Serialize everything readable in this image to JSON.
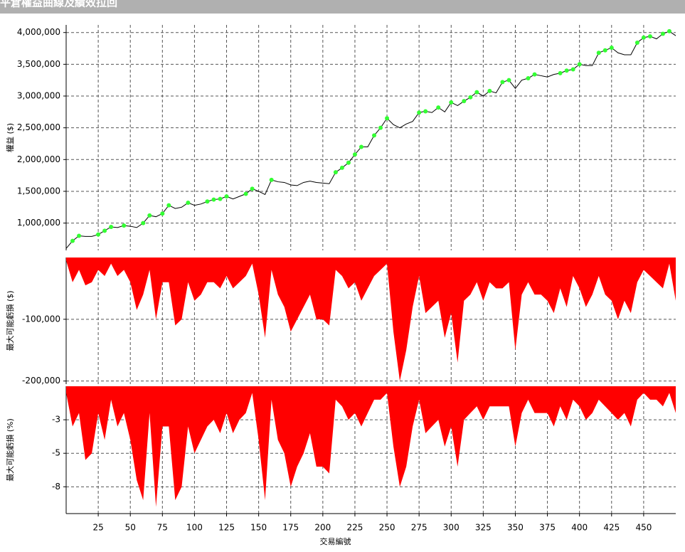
{
  "title": "平倉權益曲線及績效拉回",
  "chart_data": [
    {
      "type": "line",
      "ylabel": "權益 ($)",
      "color": "#000000",
      "marker_color": "#33ff33",
      "ylim": [
        570000,
        4120000
      ],
      "yticks": [
        {
          "value": 1000000,
          "label": "1,000,000"
        },
        {
          "value": 1500000,
          "label": "1,500,000"
        },
        {
          "value": 2000000,
          "label": "2,000,000"
        },
        {
          "value": 2500000,
          "label": "2,500,000"
        },
        {
          "value": 3000000,
          "label": "3,000,000"
        },
        {
          "value": 3500000,
          "label": "3,500,000"
        },
        {
          "value": 4000000,
          "label": "4,000,000"
        }
      ],
      "values": [
        600000,
        720000,
        800000,
        790000,
        790000,
        820000,
        880000,
        940000,
        930000,
        960000,
        950000,
        930000,
        1000000,
        1120000,
        1100000,
        1150000,
        1280000,
        1230000,
        1250000,
        1320000,
        1280000,
        1300000,
        1340000,
        1370000,
        1380000,
        1420000,
        1380000,
        1420000,
        1460000,
        1540000,
        1500000,
        1450000,
        1680000,
        1650000,
        1640000,
        1600000,
        1590000,
        1640000,
        1660000,
        1640000,
        1630000,
        1620000,
        1800000,
        1870000,
        1950000,
        2080000,
        2200000,
        2200000,
        2380000,
        2500000,
        2650000,
        2550000,
        2500000,
        2560000,
        2600000,
        2740000,
        2760000,
        2740000,
        2820000,
        2750000,
        2900000,
        2850000,
        2920000,
        2980000,
        3060000,
        3000000,
        3080000,
        3050000,
        3220000,
        3250000,
        3120000,
        3250000,
        3280000,
        3340000,
        3320000,
        3300000,
        3340000,
        3360000,
        3400000,
        3420000,
        3500000,
        3480000,
        3480000,
        3680000,
        3720000,
        3760000,
        3680000,
        3650000,
        3650000,
        3840000,
        3920000,
        3940000,
        3900000,
        3980000,
        4020000,
        3950000
      ]
    },
    {
      "type": "area",
      "ylabel": "最大可能虧損 ($)",
      "color": "#ff0000",
      "ylim": [
        -205000,
        0
      ],
      "yticks": [
        {
          "value": -100000,
          "label": "-100,000"
        },
        {
          "value": -200000,
          "label": "-200,000"
        }
      ],
      "values": [
        -5000,
        -40000,
        -20000,
        -45000,
        -40000,
        -20000,
        -30000,
        -10000,
        -30000,
        -20000,
        -40000,
        -85000,
        -60000,
        -20000,
        -100000,
        -40000,
        -40000,
        -110000,
        -100000,
        -40000,
        -70000,
        -60000,
        -40000,
        -40000,
        -50000,
        -30000,
        -50000,
        -40000,
        -30000,
        -10000,
        -60000,
        -130000,
        -20000,
        -60000,
        -80000,
        -120000,
        -100000,
        -80000,
        -60000,
        -100000,
        -100000,
        -110000,
        -20000,
        -30000,
        -50000,
        -40000,
        -70000,
        -50000,
        -30000,
        -20000,
        -10000,
        -120000,
        -200000,
        -150000,
        -80000,
        -30000,
        -90000,
        -80000,
        -70000,
        -130000,
        -90000,
        -170000,
        -70000,
        -60000,
        -40000,
        -70000,
        -40000,
        -50000,
        -50000,
        -40000,
        -150000,
        -60000,
        -40000,
        -60000,
        -60000,
        -70000,
        -90000,
        -50000,
        -80000,
        -30000,
        -50000,
        -80000,
        -60000,
        -30000,
        -60000,
        -70000,
        -100000,
        -70000,
        -90000,
        -40000,
        -20000,
        -30000,
        -40000,
        -50000,
        -10000,
        -70000
      ]
    },
    {
      "type": "area",
      "ylabel": "最大可能虧損 (%)",
      "xlabel": "交易編號",
      "color": "#ff0000",
      "ylim": [
        -9.5,
        0
      ],
      "xlim": [
        0,
        475
      ],
      "yticks": [
        {
          "value": -2.5,
          "label": "-3"
        },
        -5,
        {
          "value": -7.5,
          "label": "-8"
        }
      ],
      "xticks": [
        25,
        50,
        75,
        100,
        125,
        150,
        175,
        200,
        225,
        250,
        275,
        300,
        325,
        350,
        375,
        400,
        425,
        450
      ],
      "x": [
        0,
        5,
        10,
        15,
        20,
        25,
        30,
        35,
        40,
        45,
        50,
        55,
        60,
        65,
        70,
        75,
        80,
        85,
        90,
        95,
        100,
        105,
        110,
        115,
        120,
        125,
        130,
        135,
        140,
        145,
        150,
        155,
        160,
        165,
        170,
        175,
        180,
        185,
        190,
        195,
        200,
        205,
        210,
        215,
        220,
        225,
        230,
        235,
        240,
        245,
        250,
        255,
        260,
        265,
        270,
        275,
        280,
        285,
        290,
        295,
        300,
        305,
        310,
        315,
        320,
        325,
        330,
        335,
        340,
        345,
        350,
        355,
        360,
        365,
        370,
        375,
        380,
        385,
        390,
        395,
        400,
        405,
        410,
        415,
        420,
        425,
        430,
        435,
        440,
        445,
        450,
        455,
        460,
        465,
        470,
        475
      ],
      "values": [
        -0.5,
        -3,
        -2,
        -5.5,
        -5,
        -2,
        -4,
        -1,
        -3,
        -2,
        -4,
        -7,
        -8.5,
        -2,
        -9,
        -3,
        -3,
        -8.5,
        -7.5,
        -3,
        -5,
        -4,
        -3,
        -2.5,
        -3.5,
        -2,
        -3.5,
        -2.5,
        -2,
        -0.5,
        -4,
        -8.5,
        -1,
        -4,
        -5,
        -7.5,
        -6,
        -5,
        -3.5,
        -6,
        -6,
        -6.5,
        -1,
        -1.5,
        -2.5,
        -2,
        -3,
        -2,
        -1,
        -1,
        -0.5,
        -4.5,
        -7.5,
        -6,
        -3,
        -1,
        -3.5,
        -3,
        -2.5,
        -4.5,
        -3,
        -6,
        -2.5,
        -2,
        -1.5,
        -2.5,
        -1.5,
        -1.5,
        -1.5,
        -1.5,
        -4.5,
        -2,
        -1,
        -2,
        -2,
        -2,
        -3,
        -1.5,
        -2.5,
        -1,
        -1.5,
        -2.5,
        -2,
        -1,
        -1.5,
        -2,
        -2.5,
        -2,
        -3,
        -1,
        -0.5,
        -1,
        -1,
        -1.5,
        -0.5,
        -2
      ]
    }
  ]
}
